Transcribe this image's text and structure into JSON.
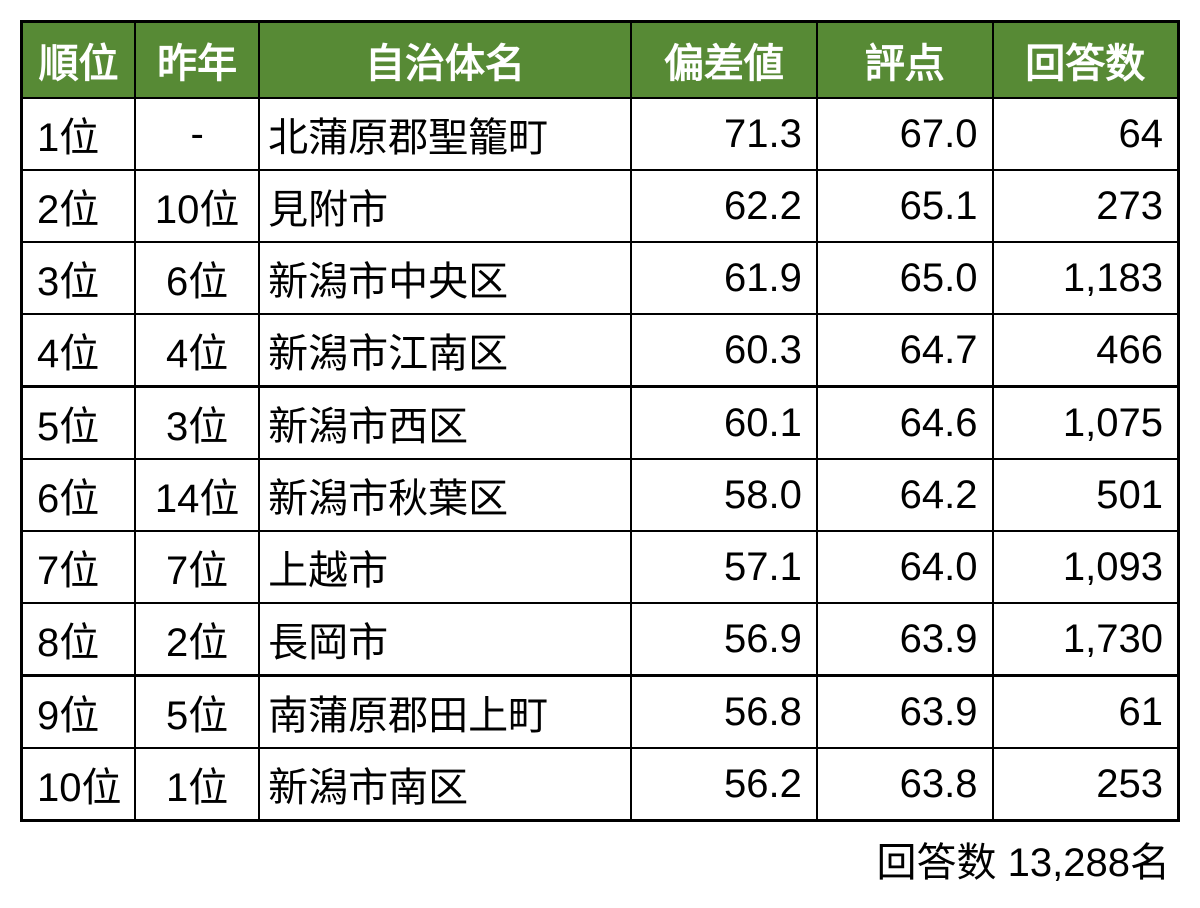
{
  "table": {
    "headers": {
      "rank": "順位",
      "last_year": "昨年",
      "name": "自治体名",
      "deviation": "偏差値",
      "score": "評点",
      "responses": "回答数"
    },
    "rows": [
      {
        "rank": "1位",
        "last_year": "-",
        "name": "北蒲原郡聖籠町",
        "deviation": "71.3",
        "score": "67.0",
        "responses": "64"
      },
      {
        "rank": "2位",
        "last_year": "10位",
        "name": "見附市",
        "deviation": "62.2",
        "score": "65.1",
        "responses": "273"
      },
      {
        "rank": "3位",
        "last_year": "6位",
        "name": "新潟市中央区",
        "deviation": "61.9",
        "score": "65.0",
        "responses": "1,183"
      },
      {
        "rank": "4位",
        "last_year": "4位",
        "name": "新潟市江南区",
        "deviation": "60.3",
        "score": "64.7",
        "responses": "466"
      },
      {
        "rank": "5位",
        "last_year": "3位",
        "name": "新潟市西区",
        "deviation": "60.1",
        "score": "64.6",
        "responses": "1,075"
      },
      {
        "rank": "6位",
        "last_year": "14位",
        "name": "新潟市秋葉区",
        "deviation": "58.0",
        "score": "64.2",
        "responses": "501"
      },
      {
        "rank": "7位",
        "last_year": "7位",
        "name": "上越市",
        "deviation": "57.1",
        "score": "64.0",
        "responses": "1,093"
      },
      {
        "rank": "8位",
        "last_year": "2位",
        "name": "長岡市",
        "deviation": "56.9",
        "score": "63.9",
        "responses": "1,730"
      },
      {
        "rank": "9位",
        "last_year": "5位",
        "name": "南蒲原郡田上町",
        "deviation": "56.8",
        "score": "63.9",
        "responses": "61"
      },
      {
        "rank": "10位",
        "last_year": "1位",
        "name": "新潟市南区",
        "deviation": "56.2",
        "score": "63.8",
        "responses": "253"
      }
    ],
    "footer": "回答数 13,288名",
    "thick_border_rows": [
      3,
      7
    ],
    "header_bg_color": "#578a35",
    "header_text_color": "#ffffff",
    "border_color": "#000000",
    "cell_bg_color": "#ffffff",
    "font_size": 40
  }
}
